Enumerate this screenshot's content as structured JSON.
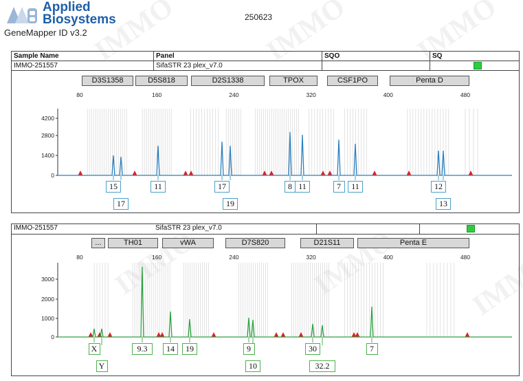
{
  "header": {
    "brand_line1": "Applied",
    "brand_line2": "Biosystems",
    "app_name": "GeneMapper ID v3.2",
    "run_id": "250623"
  },
  "table": {
    "col_sample_name": "Sample Name",
    "col_panel": "Panel",
    "col_sqo": "SQO",
    "col_sq": "SQ",
    "sample_name": "IMMO-251557",
    "panel": "SifaSTR 23 plex_v7.0",
    "sq_status_color": "#2ecc40"
  },
  "panel1": {
    "sample_name": "IMMO-251557",
    "loci": [
      "D3S1358",
      "D5S818",
      "D2S1338",
      "TPOX",
      "CSF1PO",
      "Penta D"
    ],
    "x_ticks": [
      "80",
      "160",
      "240",
      "320",
      "400",
      "480"
    ],
    "y_ticks": [
      "4200",
      "2800",
      "1400",
      "0"
    ],
    "alleles_row1": [
      "15",
      "11",
      "17",
      "8",
      "11",
      "7",
      "11",
      "12"
    ],
    "alleles_row2": [
      "17",
      "19",
      "13"
    ],
    "trace_color": "#2a7fc0"
  },
  "panel2": {
    "sample_name": "IMMO-251557",
    "panel": "SifaSTR 23 plex_v7.0",
    "loci": [
      "...",
      "TH01",
      "vWA",
      "D7S820",
      "D21S11",
      "Penta E"
    ],
    "x_ticks": [
      "80",
      "160",
      "240",
      "320",
      "400",
      "480"
    ],
    "y_ticks": [
      "3000",
      "2000",
      "1000",
      "0"
    ],
    "alleles_row1": [
      "X",
      "9.3",
      "14",
      "19",
      "9",
      "30",
      "7"
    ],
    "alleles_row2": [
      "Y",
      "10",
      "32.2"
    ],
    "trace_color": "#2ea043",
    "status_color": "#2ecc40"
  }
}
